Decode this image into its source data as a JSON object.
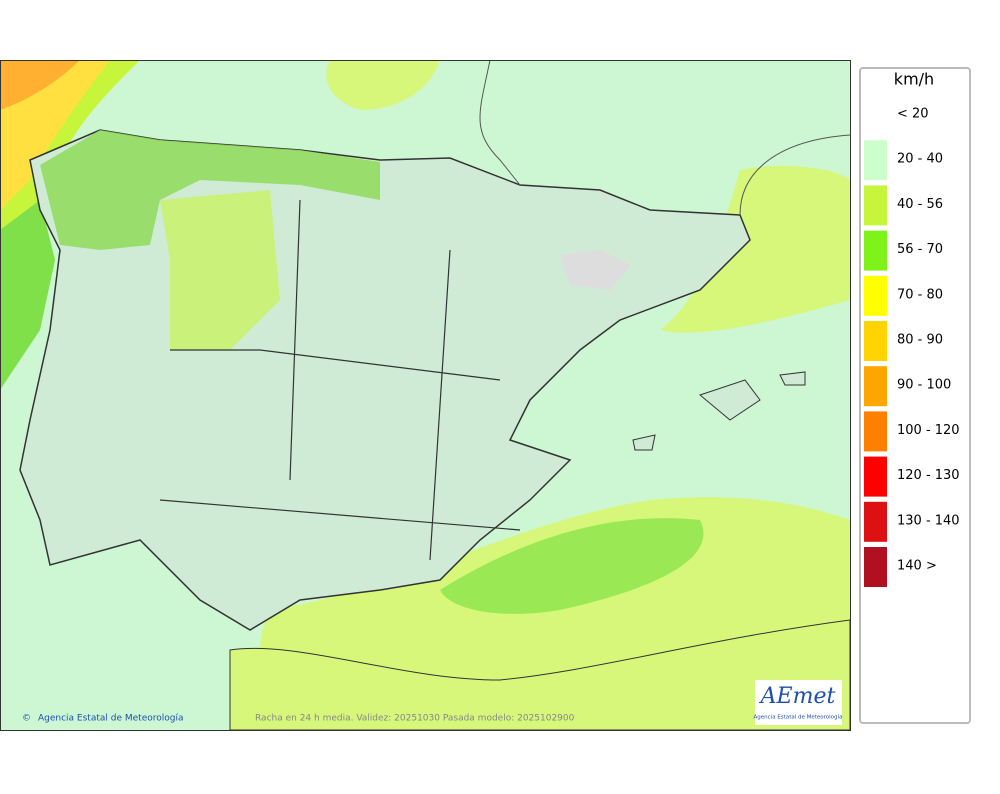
{
  "legend": {
    "title": "km/h",
    "items": [
      {
        "label": "< 20"
      },
      {
        "label": "20 - 40",
        "color": "#ccffcc"
      },
      {
        "label": "40 - 56",
        "color": "#c6f53c"
      },
      {
        "label": "56 - 70",
        "color": "#7ff21a"
      },
      {
        "label": "70 - 80",
        "color": "#ffff00"
      },
      {
        "label": "80 - 90",
        "color": "#ffd400"
      },
      {
        "label": "90 - 100",
        "color": "#ffa500"
      },
      {
        "label": "100 - 120",
        "color": "#ff8000"
      },
      {
        "label": "120 - 130",
        "color": "#ff0000"
      },
      {
        "label": "130 - 140",
        "color": "#dd1111"
      },
      {
        "label": "140 >",
        "color": "#b01020"
      }
    ]
  },
  "footer": {
    "credit": "Agencia Estatal de Meteorología",
    "caption": "Racha en 24 h media. Validez: 20251030 Pasada modelo: 2025102900"
  },
  "logo": {
    "name": "AEmet",
    "subtitle": "Agencia Estatal de Meteorología"
  }
}
